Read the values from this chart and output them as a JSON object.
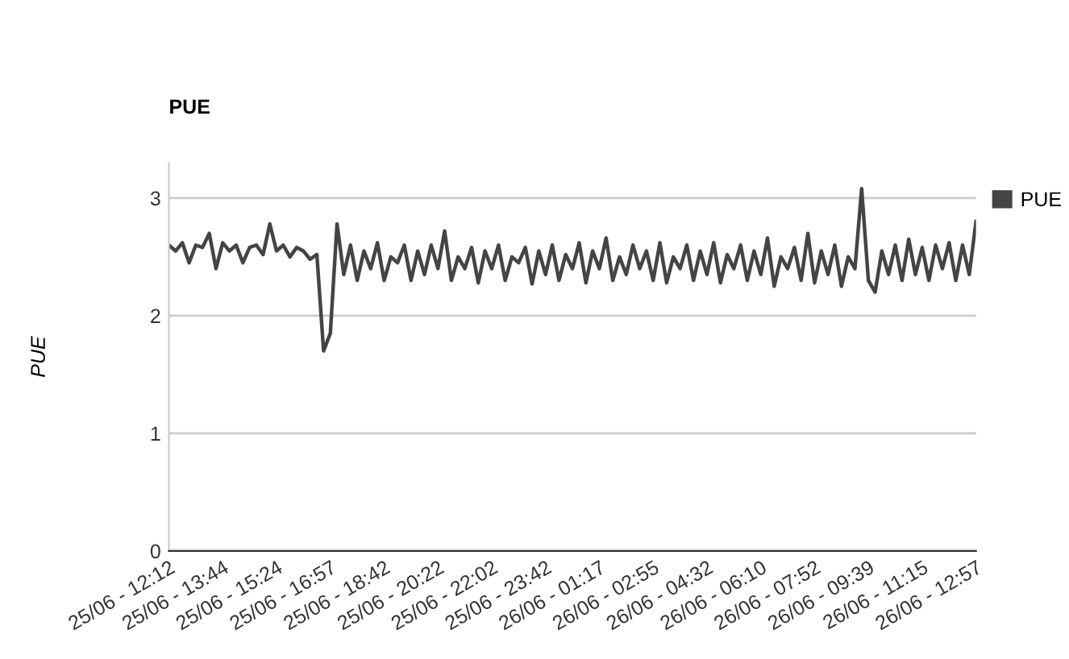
{
  "chart_data": {
    "type": "line",
    "title": "PUE",
    "ylabel": "PUE",
    "categories": [
      "25/06 - 12:12",
      null,
      null,
      null,
      null,
      null,
      null,
      null,
      "25/06 - 13:44",
      null,
      null,
      null,
      null,
      null,
      null,
      null,
      "25/06 - 15:24",
      null,
      null,
      null,
      null,
      null,
      null,
      null,
      "25/06 - 16:57",
      null,
      null,
      null,
      null,
      null,
      null,
      null,
      "25/06 - 18:42",
      null,
      null,
      null,
      null,
      null,
      null,
      null,
      "25/06 - 20:22",
      null,
      null,
      null,
      null,
      null,
      null,
      null,
      "25/06 - 22:02",
      null,
      null,
      null,
      null,
      null,
      null,
      null,
      "25/06 - 23:42",
      null,
      null,
      null,
      null,
      null,
      null,
      null,
      "26/06 - 01:17",
      null,
      null,
      null,
      null,
      null,
      null,
      null,
      "26/06 - 02:55",
      null,
      null,
      null,
      null,
      null,
      null,
      null,
      "26/06 - 04:32",
      null,
      null,
      null,
      null,
      null,
      null,
      null,
      "26/06 - 06:10",
      null,
      null,
      null,
      null,
      null,
      null,
      null,
      "26/06 - 07:52",
      null,
      null,
      null,
      null,
      null,
      null,
      null,
      "26/06 - 09:39",
      null,
      null,
      null,
      null,
      null,
      null,
      null,
      "26/06 - 11:15",
      null,
      null,
      null,
      null,
      null,
      null,
      null,
      "26/06 - 12:57"
    ],
    "series": [
      {
        "name": "PUE",
        "color": "#444444",
        "values": [
          2.6,
          2.55,
          2.62,
          2.45,
          2.6,
          2.58,
          2.7,
          2.4,
          2.62,
          2.55,
          2.6,
          2.45,
          2.58,
          2.6,
          2.52,
          2.78,
          2.55,
          2.6,
          2.5,
          2.58,
          2.55,
          2.48,
          2.52,
          1.7,
          1.85,
          2.78,
          2.35,
          2.6,
          2.3,
          2.55,
          2.4,
          2.62,
          2.3,
          2.5,
          2.45,
          2.6,
          2.3,
          2.55,
          2.35,
          2.6,
          2.4,
          2.72,
          2.3,
          2.5,
          2.4,
          2.58,
          2.28,
          2.55,
          2.4,
          2.6,
          2.3,
          2.5,
          2.45,
          2.58,
          2.27,
          2.55,
          2.35,
          2.6,
          2.3,
          2.52,
          2.4,
          2.62,
          2.28,
          2.55,
          2.4,
          2.66,
          2.3,
          2.5,
          2.35,
          2.6,
          2.4,
          2.55,
          2.3,
          2.62,
          2.28,
          2.5,
          2.4,
          2.6,
          2.3,
          2.55,
          2.35,
          2.62,
          2.28,
          2.52,
          2.4,
          2.6,
          2.3,
          2.55,
          2.35,
          2.66,
          2.25,
          2.5,
          2.4,
          2.58,
          2.3,
          2.7,
          2.28,
          2.55,
          2.35,
          2.6,
          2.25,
          2.5,
          2.4,
          3.08,
          2.3,
          2.2,
          2.55,
          2.35,
          2.6,
          2.3,
          2.65,
          2.35,
          2.58,
          2.3,
          2.6,
          2.4,
          2.62,
          2.3,
          2.6,
          2.35,
          2.8
        ]
      }
    ],
    "ylim": [
      0,
      3.3
    ],
    "yticks": [
      0,
      1,
      2,
      3
    ],
    "grid": "y",
    "legend": "top right"
  }
}
